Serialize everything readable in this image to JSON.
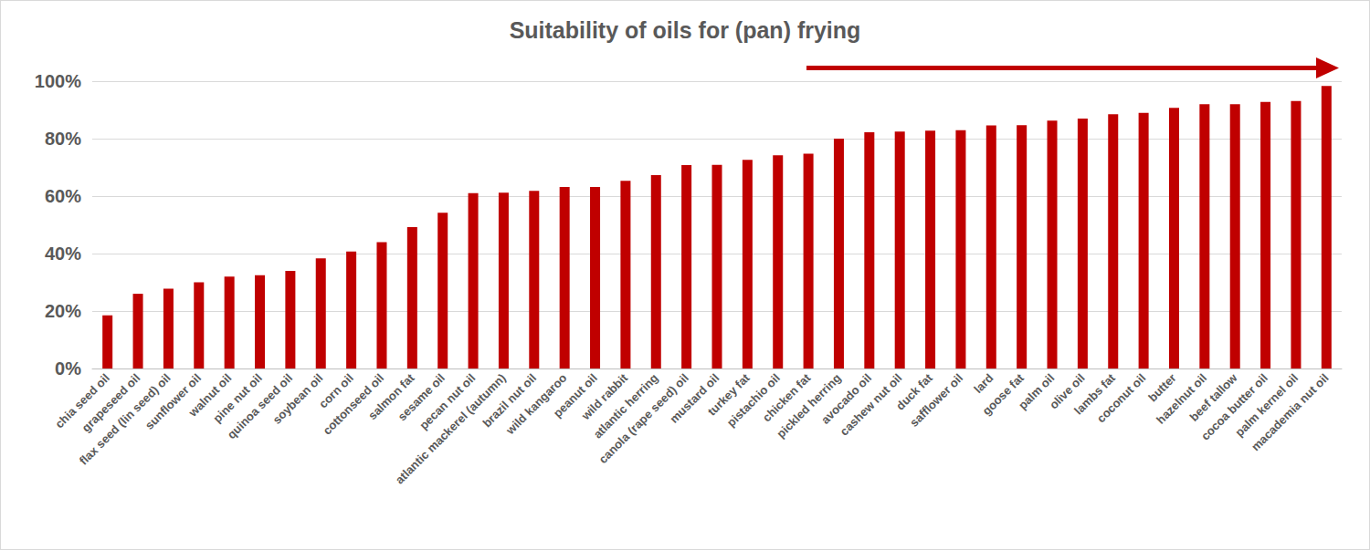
{
  "chart_data": {
    "type": "bar",
    "title": "Suitability of oils for (pan) frying",
    "categories": [
      "chia seed oil",
      "grapeseed oil",
      "flax seed (lin seed) oil",
      "sunflower oil",
      "walnut oil",
      "pine nut oil",
      "quinoa seed oil",
      "soybean oil",
      "corn oil",
      "cottonseed oil",
      "salmon fat",
      "sesame oil",
      "pecan nut oil",
      "atlantic mackerel (autumn)",
      "brazil nut oil",
      "wild kangaroo",
      "peanut oil",
      "wild rabbit",
      "atlantic herring",
      "canola (rape seed) oil",
      "mustard oil",
      "turkey fat",
      "pistachio oil",
      "chicken fat",
      "pickled herring",
      "avocado oil",
      "cashew nut oil",
      "duck fat",
      "safflower oil",
      "lard",
      "goose fat",
      "palm oil",
      "olive oil",
      "lambs fat",
      "coconut oil",
      "butter",
      "hazelnut oil",
      "beef tallow",
      "cocoa butter oil",
      "palm kernel oil",
      "macademia nut oil"
    ],
    "values": [
      18.5,
      26,
      27.8,
      30,
      32,
      32.5,
      34,
      38.3,
      40.7,
      44,
      49.2,
      54.2,
      61,
      61.2,
      61.8,
      63.2,
      63.2,
      65.3,
      67.3,
      70.8,
      70.9,
      72.6,
      74.2,
      74.8,
      80,
      82.2,
      82.5,
      82.8,
      82.9,
      84.6,
      84.7,
      86.3,
      87,
      88.5,
      89,
      90.7,
      92,
      92,
      92.8,
      93.1,
      98.3
    ],
    "color": "#c00000",
    "ylim": [
      0,
      100
    ],
    "yticks": [
      {
        "value": 0,
        "label": "0%"
      },
      {
        "value": 20,
        "label": "20%"
      },
      {
        "value": 40,
        "label": "40%"
      },
      {
        "value": 60,
        "label": "60%"
      },
      {
        "value": 80,
        "label": "80%"
      },
      {
        "value": 100,
        "label": "100%"
      }
    ],
    "grid": true
  }
}
